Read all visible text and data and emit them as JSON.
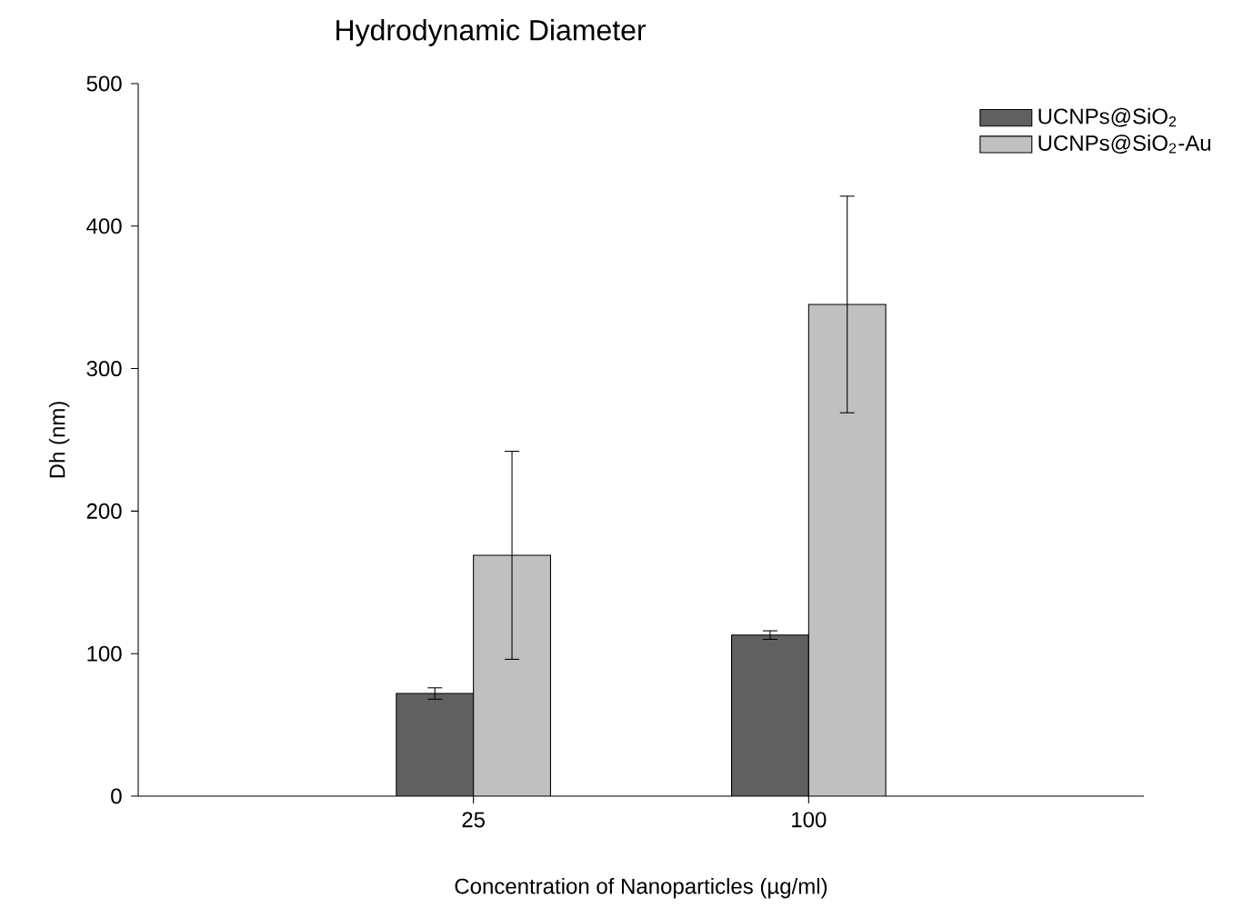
{
  "chart_data": {
    "type": "bar",
    "title": "Hydrodynamic Diameter",
    "xlabel": "Concentration of Nanoparticles (µg/ml)",
    "ylabel": "Dh (nm)",
    "categories": [
      "25",
      "100"
    ],
    "series": [
      {
        "name": "UCNPs@SiO$_{2}$",
        "color": "#606060",
        "values": [
          72,
          113
        ],
        "errors": [
          4,
          3
        ]
      },
      {
        "name": "UCNPs@SiO$_{2}$-Au",
        "color": "#c0c0c0",
        "values": [
          169,
          345
        ],
        "errors": [
          73,
          76
        ]
      }
    ],
    "ylim": [
      0,
      500
    ],
    "yticks": [
      0,
      100,
      200,
      300,
      400,
      500
    ],
    "grid": false,
    "legend": "top right"
  }
}
